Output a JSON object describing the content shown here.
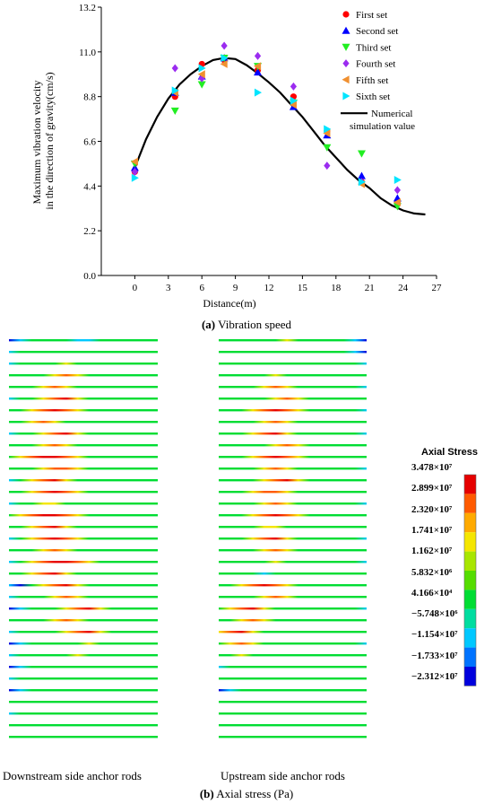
{
  "chart_data": {
    "type": "scatter",
    "xlabel": "Distance(m)",
    "ylabel_lines": [
      "Maximum vibration velocity",
      "in the direction of gravity(cm/s)"
    ],
    "xlim": [
      -3,
      27
    ],
    "ylim": [
      0,
      13.2
    ],
    "xticks": [
      "0",
      "3",
      "6",
      "9",
      "12",
      "15",
      "18",
      "21",
      "24",
      "27"
    ],
    "yticks": [
      "0.0",
      "2.2",
      "4.4",
      "6.6",
      "8.8",
      "11.0",
      "13.2"
    ],
    "grid": false,
    "legend_position": "top-right",
    "series": [
      {
        "name": "First set",
        "marker": "circle",
        "color": "#ff0000",
        "x": [
          0,
          3.6,
          6,
          8,
          11,
          14.2,
          17.2,
          20.3,
          23.5
        ],
        "y": [
          5.1,
          8.8,
          10.4,
          10.6,
          10.1,
          8.8,
          7.1,
          4.6,
          3.6
        ]
      },
      {
        "name": "Second set",
        "marker": "triangle-up",
        "color": "#0000ff",
        "x": [
          0,
          3.6,
          6,
          8,
          11,
          14.2,
          17.2,
          20.3,
          23.5
        ],
        "y": [
          5.3,
          9.0,
          9.8,
          10.7,
          10.0,
          8.3,
          6.9,
          4.9,
          3.8
        ]
      },
      {
        "name": "Third set",
        "marker": "triangle-down",
        "color": "#22ee22",
        "x": [
          0,
          3.6,
          6,
          8,
          11,
          14.2,
          17.2,
          20.3,
          23.5
        ],
        "y": [
          5.5,
          8.1,
          9.4,
          10.7,
          10.3,
          8.5,
          6.3,
          6.0,
          3.4
        ]
      },
      {
        "name": "Fourth set",
        "marker": "diamond",
        "color": "#9b2cf0",
        "x": [
          0,
          3.6,
          6,
          8,
          11,
          14.2,
          17.2,
          20.3,
          23.5
        ],
        "y": [
          5.1,
          10.2,
          9.7,
          11.3,
          10.8,
          9.3,
          5.4,
          4.6,
          4.2
        ]
      },
      {
        "name": "Fifth set",
        "marker": "triangle-left",
        "color": "#f09030",
        "x": [
          0,
          3.6,
          6,
          8,
          11,
          14.2,
          17.2,
          20.3,
          23.5
        ],
        "y": [
          5.6,
          9.0,
          9.9,
          10.4,
          10.3,
          8.4,
          7.0,
          4.5,
          3.6
        ]
      },
      {
        "name": "Sixth set",
        "marker": "triangle-right",
        "color": "#00e5ff",
        "x": [
          0,
          3.6,
          6,
          8,
          11,
          14.2,
          17.2,
          20.3,
          23.5
        ],
        "y": [
          4.8,
          9.1,
          10.2,
          10.7,
          9.0,
          8.6,
          7.2,
          4.6,
          4.7
        ]
      },
      {
        "name": "Numerical simulation value",
        "name_lines": [
          "Numerical",
          "simulation value"
        ],
        "marker": "line",
        "color": "#000000",
        "x": [
          0,
          1,
          2,
          3,
          4,
          5,
          6,
          7,
          8,
          9,
          10,
          11,
          12,
          13,
          14,
          15,
          16,
          17,
          18,
          19,
          20,
          21,
          22,
          23,
          24,
          25,
          26
        ],
        "y": [
          5.3,
          6.7,
          7.8,
          8.7,
          9.4,
          9.9,
          10.3,
          10.6,
          10.7,
          10.65,
          10.35,
          9.95,
          9.5,
          9.0,
          8.4,
          7.8,
          7.1,
          6.4,
          5.8,
          5.2,
          4.7,
          4.3,
          3.8,
          3.45,
          3.2,
          3.05,
          3.0
        ]
      }
    ]
  },
  "captions": {
    "a_letter": "(a)",
    "a_text": " Vibration speed",
    "b_letter": "(b)",
    "b_text": " Axial stress (Pa)"
  },
  "rods": {
    "downstream_label": "Downstream side anchor rods",
    "upstream_label": "Upstream side anchor rods",
    "count": 35
  },
  "colorbar": {
    "title": "Axial Stress",
    "labels": [
      "3.478×10⁷",
      "2.899×10⁷",
      "2.320×10⁷",
      "1.741×10⁷",
      "1.162×10⁷",
      "5.832×10⁶",
      "4.166×10⁴",
      "−5.748×10⁶",
      "−1.154×10⁷",
      "−1.733×10⁷",
      "−2.312×10⁷"
    ],
    "colors": [
      "#e60000",
      "#ff5a00",
      "#ffaa00",
      "#f5e600",
      "#a8e600",
      "#55dd00",
      "#00dd33",
      "#00dda0",
      "#00c8ff",
      "#0073ff",
      "#0000dd"
    ]
  }
}
